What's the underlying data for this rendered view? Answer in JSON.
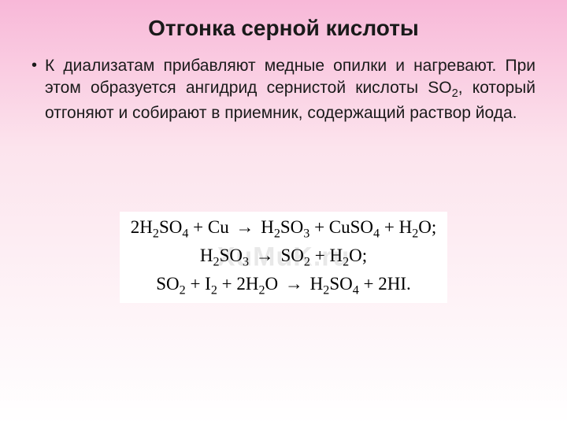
{
  "slide": {
    "title": "Отгонка серной кислоты",
    "bullet_char": "•",
    "paragraph_html": "К диализатам прибавляют медные опилки и нагревают. При этом образуется ангидрид сернистой кислоты SO<sub>2</sub>, который отгоняют и собирают в приемник, содержащий раствор йода.",
    "watermark": "XuMuK.ru",
    "equations": [
      "2H<sub>2</sub>SO<sub>4</sub> + Cu <span class=\"arrow\">→</span> H<sub>2</sub>SO<sub>3</sub> + CuSO<sub>4</sub> + H<sub>2</sub>O;",
      "H<sub>2</sub>SO<sub>3</sub> <span class=\"arrow\">→</span> SO<sub>2</sub> + H<sub>2</sub>O;",
      "SO<sub>2</sub> + I<sub>2</sub> + 2H<sub>2</sub>O <span class=\"arrow\">→</span> H<sub>2</sub>SO<sub>4</sub> + 2HI."
    ]
  },
  "style": {
    "gradient_top": "#f8b8d8",
    "gradient_mid": "#fce4ed",
    "gradient_bottom": "#ffffff",
    "title_fontsize": 28,
    "body_fontsize": 21,
    "eq_fontsize": 23,
    "eq_fontfamily": "Times New Roman",
    "eq_bg": "#ffffff",
    "watermark_color": "#d6d6d6"
  }
}
